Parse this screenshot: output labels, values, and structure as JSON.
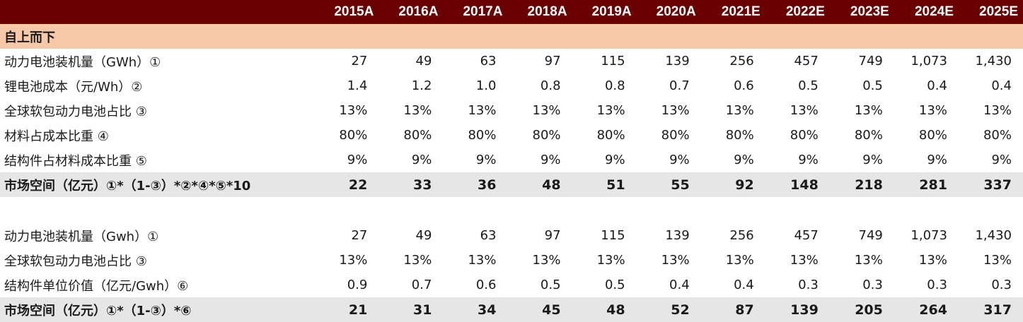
{
  "header": {
    "years": [
      "2015A",
      "2016A",
      "2017A",
      "2018A",
      "2019A",
      "2020A",
      "2021E",
      "2022E",
      "2023E",
      "2024E",
      "2025E"
    ]
  },
  "section_title": "自上而下",
  "table1": {
    "rows": [
      {
        "label": "动力电池装机量（GWh）①",
        "values": [
          "27",
          "49",
          "63",
          "97",
          "115",
          "139",
          "256",
          "457",
          "749",
          "1,073",
          "1,430"
        ]
      },
      {
        "label": "锂电池成本（元/Wh）②",
        "values": [
          "1.4",
          "1.2",
          "1.0",
          "0.8",
          "0.8",
          "0.7",
          "0.6",
          "0.5",
          "0.5",
          "0.4",
          "0.4"
        ]
      },
      {
        "label": "全球软包动力电池占比 ③",
        "values": [
          "13%",
          "13%",
          "13%",
          "13%",
          "13%",
          "13%",
          "13%",
          "13%",
          "13%",
          "13%",
          "13%"
        ]
      },
      {
        "label": "材料占成本比重 ④",
        "values": [
          "80%",
          "80%",
          "80%",
          "80%",
          "80%",
          "80%",
          "80%",
          "80%",
          "80%",
          "80%",
          "80%"
        ]
      },
      {
        "label": "结构件占材料成本比重 ⑤",
        "values": [
          "9%",
          "9%",
          "9%",
          "9%",
          "9%",
          "9%",
          "9%",
          "9%",
          "9%",
          "9%",
          "9%"
        ]
      }
    ],
    "total": {
      "label": "市场空间（亿元）①*（1-③）*②*④*⑤*10",
      "values": [
        "22",
        "33",
        "36",
        "48",
        "51",
        "55",
        "92",
        "148",
        "218",
        "281",
        "337"
      ]
    }
  },
  "table2": {
    "rows": [
      {
        "label": "动力电池装机量（Gwh）①",
        "values": [
          "27",
          "49",
          "63",
          "97",
          "115",
          "139",
          "256",
          "457",
          "749",
          "1,073",
          "1,430"
        ]
      },
      {
        "label": "全球软包动力电池占比 ③",
        "values": [
          "13%",
          "13%",
          "13%",
          "13%",
          "13%",
          "13%",
          "13%",
          "13%",
          "13%",
          "13%",
          "13%"
        ]
      },
      {
        "label": "结构件单位价值（亿元/Gwh）⑥",
        "values": [
          "0.9",
          "0.7",
          "0.6",
          "0.5",
          "0.5",
          "0.4",
          "0.4",
          "0.3",
          "0.3",
          "0.3",
          "0.3"
        ]
      }
    ],
    "total": {
      "label": "市场空间（亿元）①*（1-③）*⑥",
      "values": [
        "21",
        "31",
        "34",
        "45",
        "48",
        "52",
        "87",
        "139",
        "205",
        "264",
        "317"
      ]
    }
  },
  "colors": {
    "header_bg": "#6b0000",
    "section_bg": "#f7c9a8",
    "total_bg": "#e6e6e6"
  }
}
